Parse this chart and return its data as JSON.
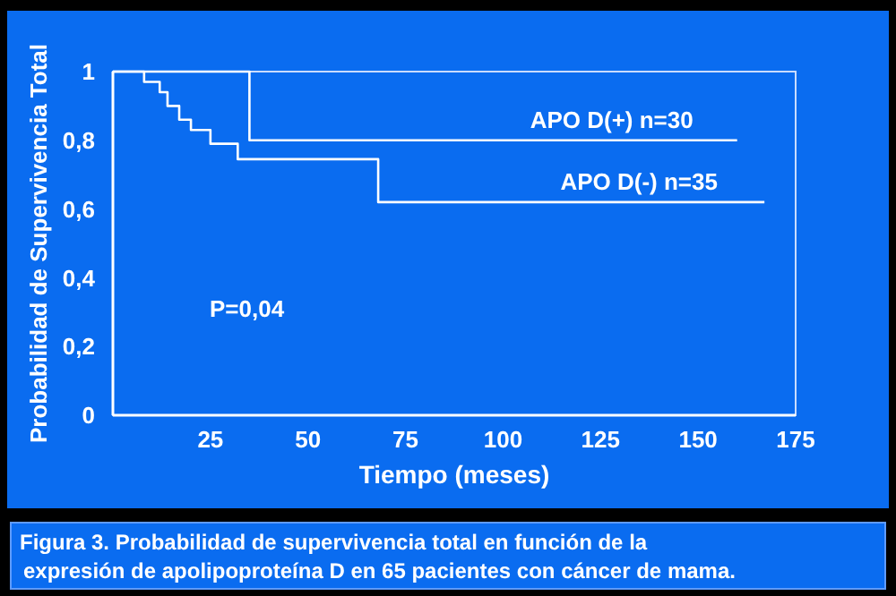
{
  "chart_data": {
    "type": "step",
    "xlabel": "Tiempo (meses)",
    "ylabel": "Probabilidad de Supervivencia Total",
    "xlim": [
      0,
      175
    ],
    "xticks": [
      25,
      50,
      75,
      100,
      125,
      150,
      175
    ],
    "ylim": [
      0,
      1
    ],
    "yticks": [
      0,
      {
        "value": 0.2,
        "label": "0,2"
      },
      {
        "value": 0.4,
        "label": "0,4"
      },
      {
        "value": 0.6,
        "label": "0,6"
      },
      {
        "value": 0.8,
        "label": "0,8"
      },
      1
    ],
    "series": [
      {
        "name": "APO D(+) n=30",
        "color": "#ffffff",
        "x": [
          0,
          35,
          160
        ],
        "values": [
          1,
          0.8,
          0.8
        ]
      },
      {
        "name": "APO D(-) n=35",
        "color": "#ffffff",
        "x": [
          0,
          8,
          12,
          14,
          17,
          20,
          25,
          32,
          68,
          167
        ],
        "values": [
          1,
          0.97,
          0.94,
          0.9,
          0.86,
          0.83,
          0.79,
          0.745,
          0.62,
          0.62
        ]
      }
    ],
    "annotations": [
      "P=0,04",
      "Figura 3. Probabilidad de supervivencia total en función de la expresión de apolipoproteína D en 65 pacientes con cáncer de mama."
    ],
    "grid": false
  }
}
